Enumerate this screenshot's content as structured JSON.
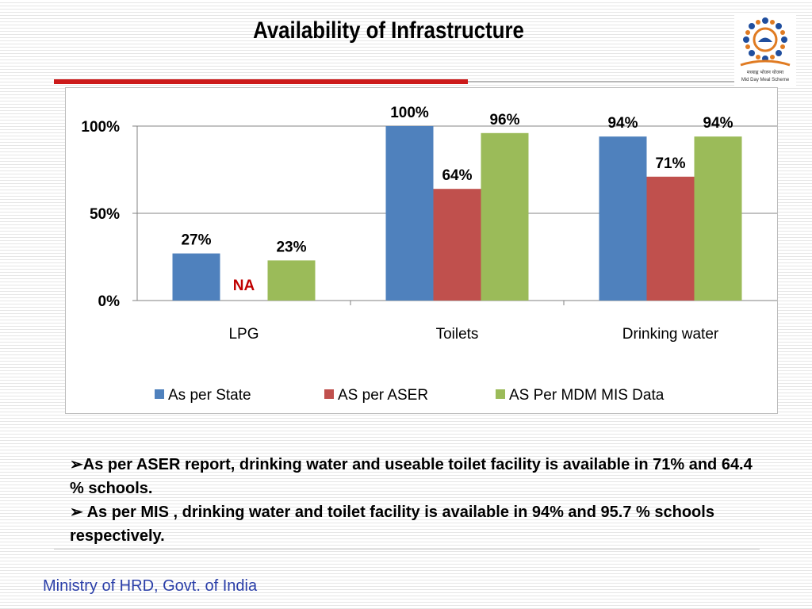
{
  "slide": {
    "title": "Availability of Infrastructure",
    "bullets": [
      "As per ASER report, drinking water and useable toilet facility is available in 71%  and 64.4 % schools.",
      " As per MIS , drinking water  and toilet facility is available in 94% and 95.7 % schools respectively."
    ],
    "bullet_marker": "➢",
    "footer": "Ministry of HRD, Govt. of India",
    "logo": {
      "icon": "mid-day-meal-logo",
      "text_line1": "मध्याह्न भोजन योजना",
      "text_line2": "Mid Day Meal Scheme"
    }
  },
  "colors": {
    "accent_red": "#cc1a1a",
    "footer_blue": "#2a3ea8"
  },
  "chart_data": {
    "type": "bar",
    "title": "",
    "xlabel": "",
    "ylabel": "",
    "categories": [
      "LPG",
      "Toilets",
      "Drinking water"
    ],
    "ylim": [
      0,
      100
    ],
    "yticks": [
      "0%",
      "50%",
      "100%"
    ],
    "grid": true,
    "legend_position": "bottom",
    "series": [
      {
        "name": "As per State",
        "color": "#4f81bd",
        "values": [
          27,
          100,
          94
        ],
        "labels": [
          "27%",
          "100%",
          "94%"
        ]
      },
      {
        "name": "AS per ASER",
        "color": "#c0504d",
        "values": [
          null,
          64,
          71
        ],
        "labels": [
          "NA",
          "64%",
          "71%"
        ]
      },
      {
        "name": "AS Per MDM MIS Data",
        "color": "#9bbb59",
        "values": [
          23,
          96,
          94
        ],
        "labels": [
          "23%",
          "96%",
          "94%"
        ]
      }
    ]
  }
}
